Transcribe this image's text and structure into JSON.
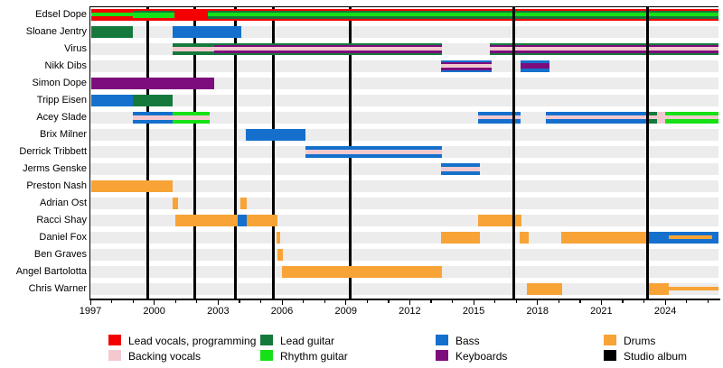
{
  "colors": {
    "lv": "#f40000",
    "bv": "#f3c9cf",
    "lg": "#15793c",
    "rg": "#16e016",
    "b": "#1470cc",
    "k": "#7d0c7d",
    "d": "#f7a336",
    "album": "#000000",
    "track": "#ececec"
  },
  "chart_data": {
    "type": "timeline",
    "title": "",
    "axis": {
      "start": 1997,
      "end": 2026.5,
      "minor_tick_interval": 1,
      "label_years": [
        1997,
        2000,
        2003,
        2006,
        2009,
        2012,
        2015,
        2018,
        2021,
        2024
      ]
    },
    "albums": [
      {
        "year": 1999.7,
        "front": false
      },
      {
        "year": 2001.9,
        "front": false
      },
      {
        "year": 2003.8,
        "front": false
      },
      {
        "year": 2005.6,
        "front": false
      },
      {
        "year": 2009.2,
        "front": false
      },
      {
        "year": 2016.9,
        "front": true
      },
      {
        "year": 2023.15,
        "front": true
      }
    ],
    "members": [
      {
        "name": "Edsel Dope",
        "segments": [
          {
            "from": 1997.05,
            "to": 1999.0,
            "stripes": [
              [
                "lv",
                4.5
              ],
              [
                "rg",
                4
              ],
              [
                "lv",
                4.5
              ]
            ]
          },
          {
            "from": 1999.0,
            "to": 2000.95,
            "stripes": [
              [
                "lv",
                2.5
              ],
              [
                "lg",
                1.5
              ],
              [
                "rg",
                6.5
              ],
              [
                "lv",
                2.5
              ]
            ]
          },
          {
            "from": 2000.95,
            "to": 2002.5,
            "stripes": [
              [
                "lv",
                13
              ]
            ]
          },
          {
            "from": 2002.5,
            "to": 2026.5,
            "stripes": [
              [
                "lv",
                2
              ],
              [
                "lg",
                2.5
              ],
              [
                "rg",
                4
              ],
              [
                "lg",
                2.5
              ],
              [
                "lv",
                2
              ]
            ]
          }
        ]
      },
      {
        "name": "Sloane Jentry",
        "segments": [
          {
            "from": 1997.05,
            "to": 1999.0,
            "stripes": [
              [
                "lg",
                13
              ]
            ]
          },
          {
            "from": 2000.85,
            "to": 2004.1,
            "stripes": [
              [
                "b",
                13
              ]
            ]
          }
        ]
      },
      {
        "name": "Virus",
        "segments": [
          {
            "from": 2000.85,
            "to": 2002.8,
            "stripes": [
              [
                "lg",
                4
              ],
              [
                "bv",
                5
              ],
              [
                "lg",
                4
              ]
            ]
          },
          {
            "from": 2002.8,
            "to": 2013.5,
            "stripes": [
              [
                "lg",
                2
              ],
              [
                "k",
                2.5
              ],
              [
                "bv",
                4
              ],
              [
                "k",
                2.5
              ],
              [
                "lg",
                2
              ]
            ]
          },
          {
            "from": 2015.75,
            "to": 2026.5,
            "stripes": [
              [
                "lg",
                2
              ],
              [
                "k",
                2.5
              ],
              [
                "bv",
                4
              ],
              [
                "k",
                2.5
              ],
              [
                "lg",
                2
              ]
            ]
          }
        ]
      },
      {
        "name": "Nikk Dibs",
        "segments": [
          {
            "from": 2013.45,
            "to": 2015.85,
            "stripes": [
              [
                "b",
                2
              ],
              [
                "k",
                2.5
              ],
              [
                "bv",
                4
              ],
              [
                "k",
                2.5
              ],
              [
                "b",
                2
              ]
            ]
          },
          {
            "from": 2017.2,
            "to": 2018.55,
            "stripes": [
              [
                "b",
                3.5
              ],
              [
                "k",
                6
              ],
              [
                "b",
                3.5
              ]
            ]
          }
        ]
      },
      {
        "name": "Simon Dope",
        "segments": [
          {
            "from": 1997.05,
            "to": 2002.8,
            "stripes": [
              [
                "k",
                13
              ]
            ]
          }
        ]
      },
      {
        "name": "Tripp Eisen",
        "segments": [
          {
            "from": 1997.05,
            "to": 1999.0,
            "stripes": [
              [
                "b",
                13
              ]
            ]
          },
          {
            "from": 1999.0,
            "to": 2000.85,
            "stripes": [
              [
                "lg",
                13
              ]
            ]
          }
        ]
      },
      {
        "name": "Acey Slade",
        "segments": [
          {
            "from": 1999.0,
            "to": 2000.85,
            "stripes": [
              [
                "b",
                4
              ],
              [
                "bv",
                5
              ],
              [
                "b",
                4
              ]
            ]
          },
          {
            "from": 2000.85,
            "to": 2002.6,
            "stripes": [
              [
                "rg",
                4
              ],
              [
                "bv",
                5
              ],
              [
                "rg",
                4
              ]
            ]
          },
          {
            "from": 2015.2,
            "to": 2017.2,
            "stripes": [
              [
                "b",
                4.5
              ],
              [
                "bv",
                4
              ],
              [
                "b",
                4.5
              ]
            ]
          },
          {
            "from": 2018.4,
            "to": 2023.15,
            "stripes": [
              [
                "b",
                4.5
              ],
              [
                "bv",
                4
              ],
              [
                "b",
                4.5
              ]
            ]
          },
          {
            "from": 2023.15,
            "to": 2023.6,
            "stripes": [
              [
                "lg",
                4.5
              ],
              [
                "bv",
                4
              ],
              [
                "lg",
                4.5
              ]
            ]
          },
          {
            "from": 2023.6,
            "to": 2024.0,
            "stripes": [
              [
                "bv",
                13
              ]
            ]
          },
          {
            "from": 2024.0,
            "to": 2026.5,
            "stripes": [
              [
                "rg",
                4.5
              ],
              [
                "bv",
                4
              ],
              [
                "rg",
                4.5
              ]
            ]
          }
        ]
      },
      {
        "name": "Brix Milner",
        "segments": [
          {
            "from": 2004.3,
            "to": 2007.1,
            "stripes": [
              [
                "b",
                13
              ]
            ]
          }
        ]
      },
      {
        "name": "Derrick Tribbett",
        "segments": [
          {
            "from": 2007.1,
            "to": 2013.5,
            "stripes": [
              [
                "b",
                4
              ],
              [
                "bv",
                5
              ],
              [
                "b",
                4
              ]
            ]
          }
        ]
      },
      {
        "name": "Jerms Genske",
        "segments": [
          {
            "from": 2013.45,
            "to": 2015.3,
            "stripes": [
              [
                "b",
                4
              ],
              [
                "bv",
                5
              ],
              [
                "b",
                4
              ]
            ]
          }
        ]
      },
      {
        "name": "Preston Nash",
        "segments": [
          {
            "from": 1997.05,
            "to": 2000.85,
            "stripes": [
              [
                "d",
                13
              ]
            ]
          }
        ]
      },
      {
        "name": "Adrian Ost",
        "segments": [
          {
            "from": 2000.85,
            "to": 2001.1,
            "stripes": [
              [
                "d",
                13
              ]
            ]
          },
          {
            "from": 2004.05,
            "to": 2004.35,
            "stripes": [
              [
                "d",
                13
              ]
            ]
          }
        ]
      },
      {
        "name": "Racci Shay",
        "segments": [
          {
            "from": 2001.0,
            "to": 2003.9,
            "stripes": [
              [
                "d",
                13
              ]
            ]
          },
          {
            "from": 2003.9,
            "to": 2004.35,
            "stripes": [
              [
                "b",
                13
              ]
            ]
          },
          {
            "from": 2004.35,
            "to": 2005.8,
            "stripes": [
              [
                "d",
                13
              ]
            ]
          },
          {
            "from": 2015.2,
            "to": 2017.25,
            "stripes": [
              [
                "d",
                13
              ]
            ]
          }
        ]
      },
      {
        "name": "Daniel Fox",
        "segments": [
          {
            "from": 2005.75,
            "to": 2005.9,
            "stripes": [
              [
                "d",
                13
              ]
            ]
          },
          {
            "from": 2013.45,
            "to": 2015.3,
            "stripes": [
              [
                "d",
                13
              ]
            ]
          },
          {
            "from": 2017.15,
            "to": 2017.6,
            "stripes": [
              [
                "d",
                13
              ]
            ]
          },
          {
            "from": 2019.1,
            "to": 2023.15,
            "stripes": [
              [
                "d",
                13
              ]
            ]
          },
          {
            "from": 2023.15,
            "to": 2026.5,
            "stripes": [
              [
                "b",
                13
              ]
            ]
          },
          {
            "from": 2024.15,
            "to": 2026.2,
            "stripes": [
              [
                null,
                4.5
              ],
              [
                "d",
                4
              ],
              [
                null,
                4.5
              ]
            ]
          }
        ]
      },
      {
        "name": "Ben Graves",
        "segments": [
          {
            "from": 2005.8,
            "to": 2006.05,
            "stripes": [
              [
                "d",
                13
              ]
            ]
          }
        ]
      },
      {
        "name": "Angel Bartolotta",
        "segments": [
          {
            "from": 2006.0,
            "to": 2013.5,
            "stripes": [
              [
                "d",
                13
              ]
            ]
          }
        ]
      },
      {
        "name": "Chris Warner",
        "segments": [
          {
            "from": 2017.5,
            "to": 2019.15,
            "stripes": [
              [
                "d",
                13
              ]
            ]
          },
          {
            "from": 2023.15,
            "to": 2024.15,
            "stripes": [
              [
                "d",
                13
              ]
            ]
          },
          {
            "from": 2024.15,
            "to": 2026.5,
            "stripes": [
              [
                null,
                4.5
              ],
              [
                "d",
                4
              ],
              [
                null,
                4.5
              ]
            ]
          }
        ]
      }
    ],
    "legend": [
      {
        "label": "Lead vocals, programming",
        "role": "lv"
      },
      {
        "label": "Backing vocals",
        "role": "bv"
      },
      {
        "label": "Lead guitar",
        "role": "lg"
      },
      {
        "label": "Rhythm guitar",
        "role": "rg"
      },
      {
        "label": "Bass",
        "role": "b"
      },
      {
        "label": "Keyboards",
        "role": "k"
      },
      {
        "label": "Drums",
        "role": "d"
      },
      {
        "label": "Studio album",
        "role": "album"
      }
    ]
  }
}
